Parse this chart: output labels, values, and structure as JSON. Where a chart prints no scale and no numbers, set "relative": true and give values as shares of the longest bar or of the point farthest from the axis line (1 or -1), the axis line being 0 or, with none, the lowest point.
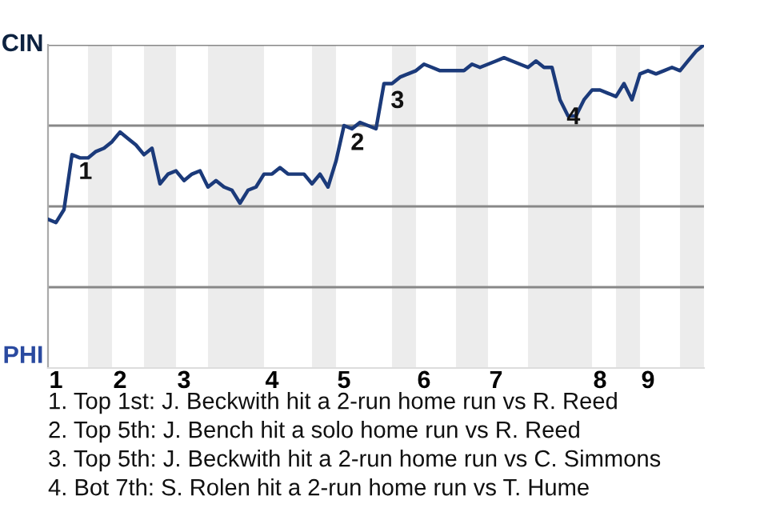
{
  "chart_data": {
    "type": "line",
    "relative": true,
    "categories": [
      null,
      "1",
      null,
      null,
      null,
      null,
      null,
      null,
      null,
      "2",
      null,
      null,
      null,
      null,
      null,
      null,
      null,
      "3",
      null,
      null,
      null,
      null,
      null,
      null,
      null,
      null,
      null,
      null,
      "4",
      null,
      null,
      null,
      null,
      null,
      null,
      null,
      null,
      "5",
      null,
      null,
      null,
      null,
      null,
      null,
      null,
      null,
      null,
      "6",
      null,
      null,
      null,
      null,
      null,
      null,
      null,
      null,
      "7",
      null,
      null,
      null,
      null,
      null,
      null,
      null,
      null,
      null,
      null,
      null,
      null,
      "8",
      null,
      null,
      null,
      null,
      null,
      "9",
      null,
      null,
      null,
      null,
      null,
      null,
      null
    ],
    "series": [
      {
        "color": "#1b3a7a",
        "values": [
          0.46,
          0.45,
          0.49,
          0.66,
          0.65,
          0.65,
          0.67,
          0.68,
          0.7,
          0.73,
          0.71,
          0.69,
          0.66,
          0.68,
          0.57,
          0.6,
          0.61,
          0.58,
          0.6,
          0.61,
          0.56,
          0.58,
          0.56,
          0.55,
          0.51,
          0.55,
          0.56,
          0.6,
          0.6,
          0.62,
          0.6,
          0.6,
          0.6,
          0.57,
          0.6,
          0.56,
          0.64,
          0.75,
          0.74,
          0.76,
          0.75,
          0.74,
          0.88,
          0.88,
          0.9,
          0.91,
          0.92,
          0.94,
          0.93,
          0.92,
          0.92,
          0.92,
          0.92,
          0.94,
          0.93,
          0.94,
          0.95,
          0.96,
          0.95,
          0.94,
          0.93,
          0.95,
          0.93,
          0.93,
          0.83,
          0.78,
          0.78,
          0.83,
          0.86,
          0.86,
          0.85,
          0.84,
          0.88,
          0.83,
          0.91,
          0.92,
          0.91,
          0.92,
          0.93,
          0.92,
          0.95,
          0.98,
          1.0
        ]
      }
    ],
    "grid": "y",
    "annotations": [
      "CIN",
      "PHI",
      {
        "text": "1",
        "y": 0.66
      },
      {
        "text": "2",
        "y": 0.75
      },
      {
        "text": "3",
        "y": 0.88
      },
      {
        "text": "4",
        "y": 0.83
      },
      "1. Top 1st: J. Beckwith hit a 2-run home run vs R. Reed",
      "2. Top 5th: J. Bench hit a solo home run vs R. Reed",
      "3. Top 5th: J. Beckwith hit a 2-run home run vs C. Simmons",
      "4. Bot 7th: S. Rolen hit a 2-run home run vs T. Hume"
    ]
  }
}
